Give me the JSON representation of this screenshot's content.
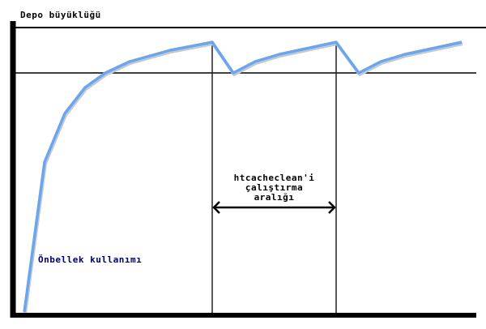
{
  "title": "Depo büyüklüğü",
  "curve_label": "Önbellek kullanımı",
  "interval_label": [
    "htcacheclean'i",
    "çalıştırma",
    "aralığı"
  ],
  "colors": {
    "curve": "#6aa6f0",
    "axes": "#000000",
    "curve_label": "#00006b"
  }
}
